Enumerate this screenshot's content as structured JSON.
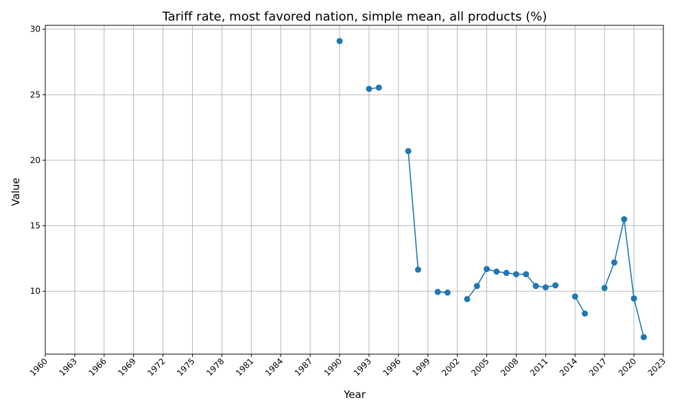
{
  "chart_data": {
    "type": "line",
    "title": "Tariff rate, most favored nation, simple mean, all products (%)",
    "xlabel": "Year",
    "ylabel": "Value",
    "xlim": [
      1960,
      2023
    ],
    "ylim": [
      5.2,
      30.3
    ],
    "x_ticks": [
      1960,
      1963,
      1966,
      1969,
      1972,
      1975,
      1978,
      1981,
      1984,
      1987,
      1990,
      1993,
      1996,
      1999,
      2002,
      2005,
      2008,
      2011,
      2014,
      2017,
      2020,
      2023
    ],
    "y_ticks": [
      10,
      15,
      20,
      25,
      30
    ],
    "grid": true,
    "series": [
      {
        "color": "#1f77b4",
        "points": [
          {
            "x": 1990,
            "y": 29.1
          },
          {
            "x": 1993,
            "y": 25.45
          },
          {
            "x": 1994,
            "y": 25.55
          },
          {
            "x": 1997,
            "y": 20.7
          },
          {
            "x": 1998,
            "y": 11.65
          },
          {
            "x": 2000,
            "y": 9.95
          },
          {
            "x": 2001,
            "y": 9.9
          },
          {
            "x": 2003,
            "y": 9.4
          },
          {
            "x": 2004,
            "y": 10.4
          },
          {
            "x": 2005,
            "y": 11.7
          },
          {
            "x": 2006,
            "y": 11.5
          },
          {
            "x": 2007,
            "y": 11.4
          },
          {
            "x": 2008,
            "y": 11.3
          },
          {
            "x": 2009,
            "y": 11.3
          },
          {
            "x": 2010,
            "y": 10.4
          },
          {
            "x": 2011,
            "y": 10.3
          },
          {
            "x": 2012,
            "y": 10.45
          },
          {
            "x": 2014,
            "y": 9.6
          },
          {
            "x": 2015,
            "y": 8.3
          },
          {
            "x": 2017,
            "y": 10.25
          },
          {
            "x": 2018,
            "y": 12.2
          },
          {
            "x": 2019,
            "y": 15.5
          },
          {
            "x": 2020,
            "y": 9.45
          },
          {
            "x": 2021,
            "y": 6.5
          }
        ]
      }
    ]
  }
}
